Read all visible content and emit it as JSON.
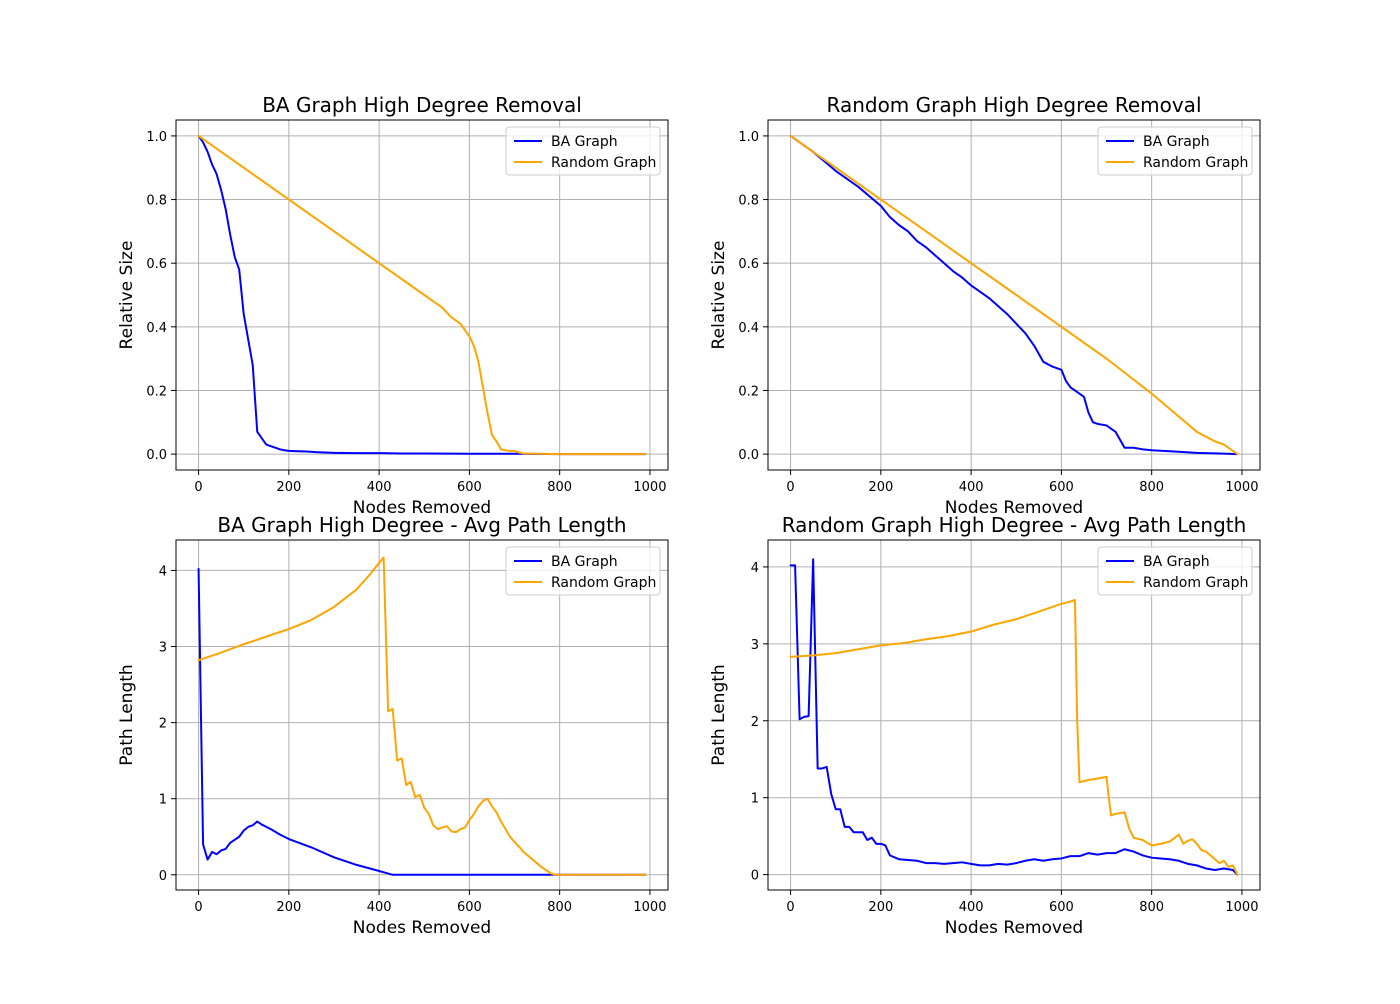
{
  "chart_data": [
    {
      "type": "line",
      "title": "BA Graph High Degree Removal",
      "xlabel": "Nodes Removed",
      "ylabel": "Relative Size",
      "xlim": [
        -50,
        1040
      ],
      "ylim": [
        -0.05,
        1.05
      ],
      "xticks": [
        0,
        200,
        400,
        600,
        800,
        1000
      ],
      "yticks": [
        0.0,
        0.2,
        0.4,
        0.6,
        0.8,
        1.0
      ],
      "xtick_labels": [
        "0",
        "200",
        "400",
        "600",
        "800",
        "1000"
      ],
      "ytick_labels": [
        "0.0",
        "0.2",
        "0.4",
        "0.6",
        "0.8",
        "1.0"
      ],
      "grid": true,
      "legend_position": "top-right",
      "series": [
        {
          "name": "BA Graph",
          "color": "#0000ff",
          "x": [
            0,
            10,
            20,
            30,
            40,
            50,
            60,
            70,
            80,
            90,
            100,
            110,
            120,
            130,
            140,
            150,
            160,
            170,
            180,
            190,
            200,
            220,
            240,
            260,
            280,
            300,
            350,
            400,
            450,
            500,
            600,
            700,
            800,
            900,
            990
          ],
          "y": [
            1.0,
            0.98,
            0.95,
            0.91,
            0.88,
            0.83,
            0.77,
            0.69,
            0.62,
            0.58,
            0.44,
            0.36,
            0.28,
            0.07,
            0.05,
            0.03,
            0.025,
            0.02,
            0.015,
            0.012,
            0.01,
            0.009,
            0.008,
            0.006,
            0.005,
            0.004,
            0.003,
            0.003,
            0.002,
            0.002,
            0.001,
            0.001,
            0.0,
            0.0,
            0.0
          ]
        },
        {
          "name": "Random Graph",
          "color": "#ffa500",
          "x": [
            0,
            100,
            200,
            300,
            400,
            450,
            500,
            520,
            540,
            560,
            580,
            590,
            600,
            610,
            620,
            630,
            640,
            650,
            660,
            670,
            680,
            690,
            700,
            710,
            720,
            800,
            900,
            990
          ],
          "y": [
            1.0,
            0.9,
            0.8,
            0.7,
            0.6,
            0.55,
            0.5,
            0.48,
            0.46,
            0.43,
            0.41,
            0.39,
            0.37,
            0.34,
            0.29,
            0.21,
            0.13,
            0.06,
            0.04,
            0.015,
            0.012,
            0.01,
            0.01,
            0.005,
            0.002,
            0.0,
            0.0,
            0.0
          ]
        }
      ]
    },
    {
      "type": "line",
      "title": "Random Graph High Degree Removal",
      "xlabel": "Nodes Removed",
      "ylabel": "Relative Size",
      "xlim": [
        -50,
        1040
      ],
      "ylim": [
        -0.05,
        1.05
      ],
      "xticks": [
        0,
        200,
        400,
        600,
        800,
        1000
      ],
      "yticks": [
        0.0,
        0.2,
        0.4,
        0.6,
        0.8,
        1.0
      ],
      "xtick_labels": [
        "0",
        "200",
        "400",
        "600",
        "800",
        "1000"
      ],
      "ytick_labels": [
        "0.0",
        "0.2",
        "0.4",
        "0.6",
        "0.8",
        "1.0"
      ],
      "grid": true,
      "legend_position": "top-right",
      "series": [
        {
          "name": "BA Graph",
          "color": "#0000ff",
          "x": [
            0,
            50,
            100,
            150,
            200,
            220,
            240,
            260,
            280,
            300,
            320,
            340,
            360,
            380,
            400,
            420,
            440,
            460,
            480,
            500,
            520,
            540,
            560,
            580,
            600,
            610,
            620,
            630,
            640,
            650,
            660,
            670,
            680,
            700,
            710,
            720,
            740,
            760,
            780,
            800,
            850,
            900,
            950,
            990
          ],
          "y": [
            1.0,
            0.95,
            0.89,
            0.84,
            0.78,
            0.745,
            0.72,
            0.7,
            0.67,
            0.65,
            0.625,
            0.6,
            0.575,
            0.555,
            0.53,
            0.51,
            0.49,
            0.465,
            0.44,
            0.41,
            0.38,
            0.34,
            0.29,
            0.275,
            0.265,
            0.23,
            0.21,
            0.2,
            0.19,
            0.18,
            0.13,
            0.1,
            0.095,
            0.09,
            0.08,
            0.07,
            0.02,
            0.02,
            0.015,
            0.012,
            0.008,
            0.004,
            0.002,
            0.0
          ]
        },
        {
          "name": "Random Graph",
          "color": "#ffa500",
          "x": [
            0,
            100,
            200,
            300,
            400,
            500,
            600,
            700,
            800,
            850,
            900,
            940,
            960,
            980,
            990
          ],
          "y": [
            1.0,
            0.9,
            0.8,
            0.7,
            0.6,
            0.5,
            0.4,
            0.3,
            0.19,
            0.13,
            0.07,
            0.04,
            0.03,
            0.01,
            0.0
          ]
        }
      ]
    },
    {
      "type": "line",
      "title": "BA Graph High Degree - Avg Path Length",
      "xlabel": "Nodes Removed",
      "ylabel": "Path Length",
      "xlim": [
        -50,
        1040
      ],
      "ylim": [
        -0.2,
        4.4
      ],
      "xticks": [
        0,
        200,
        400,
        600,
        800,
        1000
      ],
      "yticks": [
        0,
        1,
        2,
        3,
        4
      ],
      "xtick_labels": [
        "0",
        "200",
        "400",
        "600",
        "800",
        "1000"
      ],
      "ytick_labels": [
        "0",
        "1",
        "2",
        "3",
        "4"
      ],
      "grid": true,
      "legend_position": "top-right",
      "series": [
        {
          "name": "BA Graph",
          "color": "#0000ff",
          "x": [
            0,
            10,
            20,
            30,
            40,
            50,
            60,
            70,
            80,
            90,
            100,
            110,
            120,
            130,
            140,
            150,
            160,
            180,
            200,
            250,
            300,
            350,
            400,
            430,
            500,
            600,
            700,
            800,
            900,
            990
          ],
          "y": [
            4.02,
            0.4,
            0.2,
            0.3,
            0.27,
            0.32,
            0.34,
            0.42,
            0.46,
            0.5,
            0.58,
            0.63,
            0.65,
            0.7,
            0.66,
            0.63,
            0.6,
            0.53,
            0.47,
            0.36,
            0.23,
            0.13,
            0.05,
            0.0,
            0.0,
            0.0,
            0.0,
            0.0,
            0.0,
            0.0
          ]
        },
        {
          "name": "Random Graph",
          "color": "#ffa500",
          "x": [
            0,
            50,
            100,
            150,
            200,
            250,
            300,
            350,
            380,
            400,
            410,
            420,
            430,
            440,
            450,
            460,
            470,
            480,
            490,
            500,
            510,
            520,
            530,
            540,
            550,
            560,
            570,
            580,
            590,
            600,
            610,
            620,
            630,
            640,
            650,
            660,
            670,
            680,
            690,
            700,
            710,
            720,
            740,
            760,
            780,
            790,
            800,
            900,
            990
          ],
          "y": [
            2.82,
            2.92,
            3.03,
            3.13,
            3.23,
            3.35,
            3.52,
            3.75,
            3.95,
            4.1,
            4.17,
            2.15,
            2.18,
            1.5,
            1.53,
            1.18,
            1.22,
            1.02,
            1.05,
            0.88,
            0.8,
            0.65,
            0.6,
            0.62,
            0.64,
            0.57,
            0.56,
            0.6,
            0.62,
            0.72,
            0.8,
            0.9,
            0.97,
            1.0,
            0.9,
            0.82,
            0.7,
            0.6,
            0.5,
            0.43,
            0.37,
            0.3,
            0.2,
            0.1,
            0.02,
            0.0,
            0.0,
            0.0,
            0.0
          ]
        }
      ]
    },
    {
      "type": "line",
      "title": "Random Graph High Degree - Avg Path Length",
      "xlabel": "Nodes Removed",
      "ylabel": "Path Length",
      "xlim": [
        -50,
        1040
      ],
      "ylim": [
        -0.2,
        4.35
      ],
      "xticks": [
        0,
        200,
        400,
        600,
        800,
        1000
      ],
      "yticks": [
        0,
        1,
        2,
        3,
        4
      ],
      "xtick_labels": [
        "0",
        "200",
        "400",
        "600",
        "800",
        "1000"
      ],
      "ytick_labels": [
        "0",
        "1",
        "2",
        "3",
        "4"
      ],
      "grid": true,
      "legend_position": "top-right",
      "series": [
        {
          "name": "BA Graph",
          "color": "#0000ff",
          "x": [
            0,
            10,
            20,
            30,
            40,
            50,
            60,
            70,
            80,
            90,
            100,
            110,
            120,
            130,
            140,
            150,
            160,
            170,
            180,
            190,
            200,
            210,
            220,
            240,
            260,
            280,
            300,
            320,
            340,
            360,
            380,
            400,
            420,
            440,
            460,
            480,
            500,
            520,
            540,
            560,
            580,
            600,
            620,
            640,
            660,
            680,
            700,
            720,
            740,
            760,
            780,
            800,
            820,
            840,
            860,
            880,
            900,
            920,
            940,
            960,
            980,
            990
          ],
          "y": [
            4.02,
            4.02,
            2.02,
            2.05,
            2.06,
            4.1,
            1.38,
            1.38,
            1.4,
            1.05,
            0.85,
            0.85,
            0.62,
            0.62,
            0.55,
            0.55,
            0.55,
            0.45,
            0.48,
            0.4,
            0.4,
            0.38,
            0.25,
            0.2,
            0.19,
            0.18,
            0.15,
            0.15,
            0.14,
            0.15,
            0.16,
            0.14,
            0.12,
            0.12,
            0.14,
            0.13,
            0.15,
            0.18,
            0.2,
            0.18,
            0.2,
            0.21,
            0.24,
            0.24,
            0.28,
            0.26,
            0.28,
            0.28,
            0.33,
            0.3,
            0.25,
            0.22,
            0.21,
            0.2,
            0.18,
            0.14,
            0.12,
            0.08,
            0.06,
            0.08,
            0.06,
            0.0
          ]
        },
        {
          "name": "Random Graph",
          "color": "#ffa500",
          "x": [
            0,
            50,
            100,
            150,
            200,
            250,
            300,
            350,
            400,
            450,
            500,
            550,
            600,
            620,
            630,
            635,
            640,
            660,
            680,
            700,
            705,
            710,
            720,
            740,
            750,
            760,
            780,
            800,
            820,
            840,
            860,
            870,
            880,
            890,
            900,
            910,
            920,
            930,
            940,
            950,
            960,
            970,
            980,
            990
          ],
          "y": [
            2.83,
            2.85,
            2.88,
            2.93,
            2.98,
            3.01,
            3.06,
            3.1,
            3.16,
            3.25,
            3.32,
            3.42,
            3.52,
            3.55,
            3.57,
            2.0,
            1.2,
            1.23,
            1.25,
            1.27,
            1.0,
            0.77,
            0.79,
            0.81,
            0.6,
            0.48,
            0.45,
            0.38,
            0.4,
            0.43,
            0.52,
            0.4,
            0.44,
            0.46,
            0.4,
            0.32,
            0.3,
            0.25,
            0.2,
            0.15,
            0.18,
            0.1,
            0.12,
            0.0
          ]
        }
      ]
    }
  ]
}
